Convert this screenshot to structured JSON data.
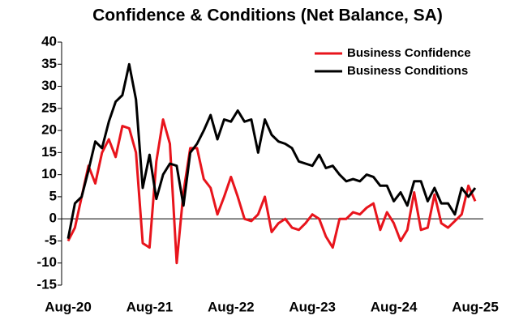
{
  "chart_data": {
    "type": "line",
    "title": "Confidence & Conditions (Net Balance, SA)",
    "categories": [
      "Aug-20",
      null,
      null,
      null,
      null,
      null,
      null,
      null,
      null,
      null,
      null,
      null,
      "Aug-21",
      null,
      null,
      null,
      null,
      null,
      null,
      null,
      null,
      null,
      null,
      null,
      "Aug-22",
      null,
      null,
      null,
      null,
      null,
      null,
      null,
      null,
      null,
      null,
      null,
      "Aug-23",
      null,
      null,
      null,
      null,
      null,
      null,
      null,
      null,
      null,
      null,
      null,
      "Aug-24",
      null,
      null,
      null,
      null,
      null,
      null,
      null,
      null,
      null,
      null,
      null,
      "Aug-25"
    ],
    "series": [
      {
        "name": "Business Confidence",
        "color": "#e8141c",
        "values": [
          -5,
          -2,
          5,
          12,
          8,
          15,
          18,
          14,
          21,
          20.5,
          15,
          -5.5,
          -6.5,
          13,
          22.5,
          17,
          -10,
          6,
          16,
          16,
          9,
          7,
          1,
          5,
          9.5,
          5,
          0,
          -0.5,
          1,
          5,
          -3,
          -1,
          0,
          -2,
          -2.5,
          -1,
          1,
          0,
          -4,
          -6.5,
          0,
          0,
          1.5,
          1,
          2.5,
          3.5,
          -2.5,
          1.5,
          -1,
          -5,
          -2.5,
          6,
          -2.5,
          -2,
          5.5,
          -1,
          -2,
          -0.5,
          1,
          7.5,
          4
        ]
      },
      {
        "name": "Business Conditions",
        "color": "#000000",
        "values": [
          -4.5,
          3.5,
          5,
          11,
          17.5,
          16,
          22,
          26.5,
          28,
          35,
          27,
          7,
          14.5,
          4.5,
          10,
          12.5,
          12,
          3,
          15,
          17,
          20,
          23.5,
          18,
          22.5,
          22,
          24.5,
          22,
          22.5,
          15,
          22.5,
          19,
          17.5,
          17,
          16,
          13,
          12.5,
          12,
          14.5,
          11.5,
          12,
          10,
          8.5,
          9,
          8.5,
          10,
          9.5,
          7.5,
          7.5,
          4,
          6,
          3,
          8.5,
          8.5,
          4,
          7,
          3.5,
          3.5,
          1,
          7,
          5,
          7
        ]
      }
    ],
    "ylim": [
      -15,
      40
    ],
    "yticks": [
      -15,
      -10,
      -5,
      0,
      5,
      10,
      15,
      20,
      25,
      30,
      35,
      40
    ],
    "grid": false,
    "legend": "upper right"
  }
}
